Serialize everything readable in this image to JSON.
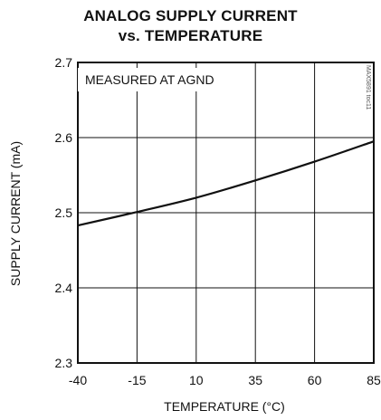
{
  "chart_data": {
    "type": "line",
    "title_line1": "ANALOG SUPPLY CURRENT",
    "title_line2": "vs. TEMPERATURE",
    "xlabel": "TEMPERATURE (°C)",
    "ylabel": "SUPPLY CURRENT (mA)",
    "annotation": "MEASURED AT AGND",
    "side_code": "MAX5891 toc11",
    "xlim": [
      -40,
      85
    ],
    "ylim": [
      2.3,
      2.7
    ],
    "x_ticks": [
      "-40",
      "-15",
      "10",
      "35",
      "60",
      "85"
    ],
    "y_ticks": [
      "2.3",
      "2.4",
      "2.5",
      "2.6",
      "2.7"
    ],
    "x_tick_values": [
      -40,
      -15,
      10,
      35,
      60,
      85
    ],
    "y_tick_values": [
      2.3,
      2.4,
      2.5,
      2.6,
      2.7
    ],
    "grid": true,
    "series": [
      {
        "x": [
          -40,
          -15,
          10,
          35,
          60,
          85
        ],
        "y": [
          2.483,
          2.501,
          2.52,
          2.543,
          2.568,
          2.595
        ]
      }
    ]
  }
}
